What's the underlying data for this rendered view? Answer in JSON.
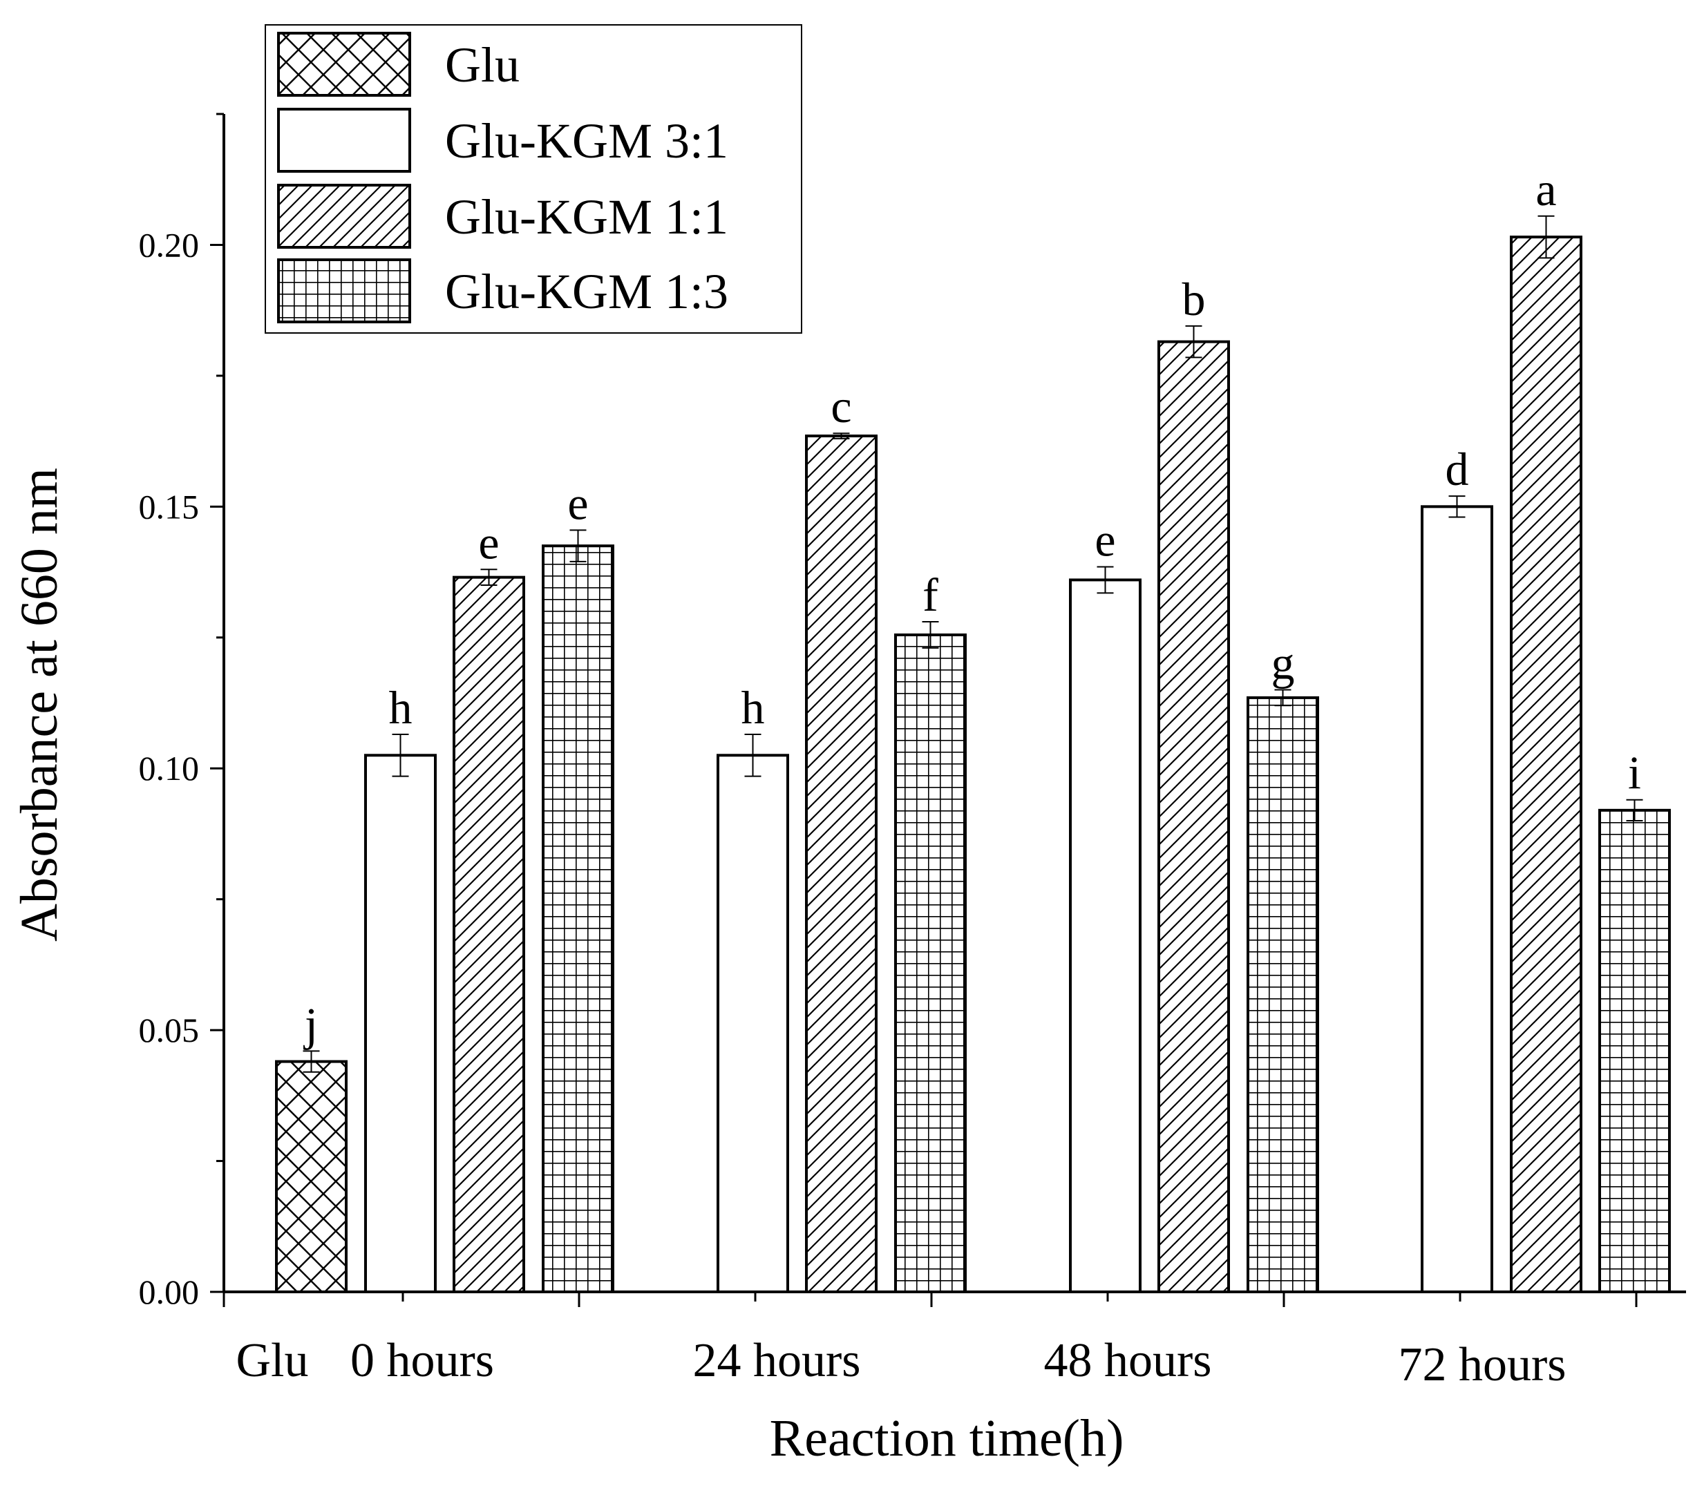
{
  "chart_data": {
    "type": "bar",
    "title": "",
    "xlabel": "Reaction time(h)",
    "ylabel": "Absorbance at 660 nm",
    "ylim": [
      0,
      0.225
    ],
    "yticks": [
      "0.00",
      "0.05",
      "0.10",
      "0.15",
      "0.20"
    ],
    "ytick_values": [
      0,
      0.05,
      0.1,
      0.15,
      0.2
    ],
    "grid": false,
    "legend_position": "top-left",
    "category_labels": [
      "Glu",
      "0 hours",
      "24 hours",
      "48 hours",
      "72 hours"
    ],
    "series": [
      {
        "name": "Glu",
        "pattern": "crosshatch"
      },
      {
        "name": "Glu-KGM 3:1",
        "pattern": "none"
      },
      {
        "name": "Glu-KGM 1:1",
        "pattern": "diagonal"
      },
      {
        "name": "Glu-KGM 1:3",
        "pattern": "grid"
      }
    ],
    "bars": [
      {
        "group": "Glu",
        "series": 0,
        "value": 0.044,
        "error": 0.002,
        "label": "j"
      },
      {
        "group": "0 hours",
        "series": 1,
        "value": 0.1025,
        "error": 0.004,
        "label": "h"
      },
      {
        "group": "0 hours",
        "series": 2,
        "value": 0.1365,
        "error": 0.0015,
        "label": "e"
      },
      {
        "group": "0 hours",
        "series": 3,
        "value": 0.1425,
        "error": 0.003,
        "label": "e"
      },
      {
        "group": "24 hours",
        "series": 1,
        "value": 0.1025,
        "error": 0.004,
        "label": "h"
      },
      {
        "group": "24 hours",
        "series": 2,
        "value": 0.1635,
        "error": 0.0005,
        "label": "c"
      },
      {
        "group": "24 hours",
        "series": 3,
        "value": 0.1255,
        "error": 0.0025,
        "label": "f"
      },
      {
        "group": "48 hours",
        "series": 1,
        "value": 0.136,
        "error": 0.0025,
        "label": "e"
      },
      {
        "group": "48 hours",
        "series": 2,
        "value": 0.1815,
        "error": 0.003,
        "label": "b"
      },
      {
        "group": "48 hours",
        "series": 3,
        "value": 0.1135,
        "error": 0.0015,
        "label": "g"
      },
      {
        "group": "72 hours",
        "series": 1,
        "value": 0.15,
        "error": 0.002,
        "label": "d"
      },
      {
        "group": "72 hours",
        "series": 2,
        "value": 0.2015,
        "error": 0.004,
        "label": "a"
      },
      {
        "group": "72 hours",
        "series": 3,
        "value": 0.092,
        "error": 0.002,
        "label": "i"
      }
    ]
  }
}
